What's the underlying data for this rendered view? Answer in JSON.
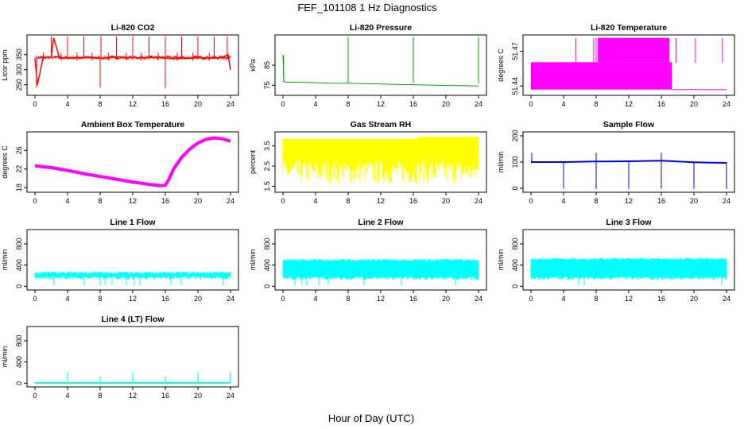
{
  "figure": {
    "title": "FEF_101108  1 Hz Diagnostics",
    "xlabel": "Hour of Day (UTC)"
  },
  "chart_data": [
    {
      "type": "line",
      "title": "Li-820 CO2",
      "ylabel": "Licor ppm",
      "color": "#ff0000",
      "xlim": [
        0,
        24
      ],
      "ylim": [
        215,
        415
      ],
      "yticks": [
        "250",
        "300",
        "350"
      ],
      "xticks": [
        "0",
        "4",
        "8",
        "12",
        "16",
        "20",
        "24"
      ],
      "series": [
        {
          "x": [
            0,
            0.3,
            1,
            2,
            2.3,
            3,
            4,
            5,
            6,
            7,
            8,
            9,
            10,
            11,
            12,
            13,
            14,
            15,
            16,
            17,
            18,
            19,
            20,
            21,
            22,
            23,
            23.7,
            24
          ],
          "values": [
            335,
            250,
            340,
            342,
            405,
            340,
            338,
            340,
            341,
            339,
            337,
            340,
            342,
            341,
            340,
            339,
            340,
            341,
            338,
            336,
            337,
            338,
            339,
            340,
            338,
            341,
            350,
            300
          ]
        }
      ]
    },
    {
      "type": "line",
      "title": "Li-820 Pressure",
      "ylabel": "kPa",
      "color": "#00aa00",
      "xlim": [
        0,
        24
      ],
      "ylim": [
        70,
        100
      ],
      "yticks": [
        "75",
        "85"
      ],
      "xticks": [
        "0",
        "4",
        "8",
        "12",
        "16",
        "20",
        "24"
      ],
      "series": [
        {
          "x": [
            0,
            0.1,
            0.3,
            2,
            4,
            6,
            8,
            10,
            12,
            14,
            16,
            18,
            20,
            22,
            24
          ],
          "values": [
            90,
            77,
            76.5,
            76.5,
            76.3,
            76,
            76,
            75.8,
            75.6,
            75.4,
            75.3,
            75.1,
            74.9,
            74.8,
            74.6
          ]
        }
      ]
    },
    {
      "type": "line",
      "title": "Li-820 Temperature",
      "ylabel": "degrees C",
      "color": "#ff00ff",
      "xlim": [
        0,
        24
      ],
      "ylim": [
        51.432,
        51.484
      ],
      "yticks": [
        "51.44",
        "51.47"
      ],
      "xticks": [
        "0",
        "4",
        "8",
        "12",
        "16",
        "20",
        "24"
      ],
      "series": [
        {
          "x": [
            0,
            5.5,
            8,
            17,
            17.5,
            24
          ],
          "values": [
            51.46,
            51.46,
            51.48,
            51.48,
            51.44,
            51.44
          ]
        }
      ]
    },
    {
      "type": "line",
      "title": "Ambient Box Temperature",
      "ylabel": "degrees C",
      "color": "#ff00ff",
      "xlim": [
        0,
        24
      ],
      "ylim": [
        17,
        30
      ],
      "yticks": [
        "18",
        "22",
        "26"
      ],
      "xticks": [
        "0",
        "4",
        "8",
        "12",
        "16",
        "20",
        "24"
      ],
      "series": [
        {
          "x": [
            0,
            2,
            4,
            6,
            8,
            10,
            12,
            14,
            15.5,
            16,
            16.5,
            17,
            18,
            19,
            20,
            21,
            22,
            23,
            24
          ],
          "values": [
            22.7,
            22.3,
            21.7,
            21.0,
            20.4,
            19.8,
            19.2,
            18.7,
            18.4,
            18.5,
            20.0,
            22.0,
            24.5,
            26.3,
            27.6,
            28.4,
            28.7,
            28.5,
            28.0
          ]
        }
      ]
    },
    {
      "type": "line",
      "title": "Gas Stream RH",
      "ylabel": "percent",
      "color": "#ffff00",
      "xlim": [
        0,
        24
      ],
      "ylim": [
        1.2,
        4.2
      ],
      "yticks": [
        "1.5",
        "2.5",
        "3.5"
      ],
      "xticks": [
        "0",
        "4",
        "8",
        "12",
        "16",
        "20",
        "24"
      ],
      "series": [
        {
          "x": [
            0,
            4,
            8,
            12,
            16,
            16.5,
            20,
            24
          ],
          "values": [
            3.8,
            3.75,
            3.8,
            3.75,
            3.8,
            3.9,
            3.85,
            3.8
          ]
        }
      ]
    },
    {
      "type": "line",
      "title": "Sample Flow",
      "ylabel": "ml/min",
      "color": "#0000ff",
      "xlim": [
        0,
        24
      ],
      "ylim": [
        -15,
        215
      ],
      "yticks": [
        "0",
        "100",
        "200"
      ],
      "xticks": [
        "0",
        "4",
        "8",
        "12",
        "16",
        "20",
        "24"
      ],
      "series": [
        {
          "x": [
            0,
            4,
            8,
            12,
            16,
            20,
            24
          ],
          "values": [
            100,
            100,
            102,
            103,
            105,
            99,
            97
          ]
        }
      ]
    },
    {
      "type": "line",
      "title": "Line 1 Flow",
      "ylabel": "ml/min",
      "color": "#00ffff",
      "xlim": [
        0,
        24
      ],
      "ylim": [
        -70,
        1070
      ],
      "yticks": [
        "0",
        "400",
        "800"
      ],
      "xticks": [
        "0",
        "4",
        "8",
        "12",
        "16",
        "20",
        "24"
      ],
      "series": [
        {
          "x": [
            0,
            24
          ],
          "values": [
            260,
            250
          ]
        }
      ]
    },
    {
      "type": "line",
      "title": "Line 2 Flow",
      "ylabel": "ml/min",
      "color": "#00ffff",
      "xlim": [
        0,
        24
      ],
      "ylim": [
        -70,
        1070
      ],
      "yticks": [
        "0",
        "400",
        "800"
      ],
      "xticks": [
        "0",
        "4",
        "8",
        "12",
        "16",
        "20",
        "24"
      ],
      "series": [
        {
          "x": [
            0,
            24
          ],
          "values": [
            500,
            480
          ]
        }
      ]
    },
    {
      "type": "line",
      "title": "Line 3 Flow",
      "ylabel": "ml/min",
      "color": "#00ffff",
      "xlim": [
        0,
        24
      ],
      "ylim": [
        -70,
        1070
      ],
      "yticks": [
        "0",
        "400",
        "800"
      ],
      "xticks": [
        "0",
        "4",
        "8",
        "12",
        "16",
        "20",
        "24"
      ],
      "series": [
        {
          "x": [
            0,
            24
          ],
          "values": [
            520,
            480
          ]
        }
      ]
    },
    {
      "type": "line",
      "title": "Line 4 (LT) Flow",
      "ylabel": "ml/min",
      "color": "#00ffff",
      "xlim": [
        0,
        24
      ],
      "ylim": [
        -70,
        1070
      ],
      "yticks": [
        "0",
        "400",
        "800"
      ],
      "xticks": [
        "0",
        "4",
        "8",
        "12",
        "16",
        "20",
        "24"
      ],
      "series": [
        {
          "x": [
            0,
            4,
            8,
            12,
            16,
            20,
            24
          ],
          "values": [
            5,
            5,
            5,
            5,
            5,
            5,
            5
          ]
        }
      ]
    }
  ]
}
